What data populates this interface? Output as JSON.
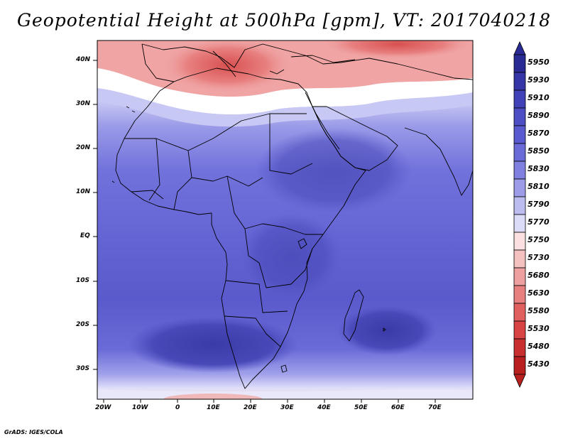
{
  "title": "Geopotential Height at 500hPa [gpm], VT: 2017040218",
  "footer": "GrADS: IGES/COLA",
  "lat_ticks": [
    {
      "label": "40N",
      "lat": 40
    },
    {
      "label": "30N",
      "lat": 30
    },
    {
      "label": "20N",
      "lat": 20
    },
    {
      "label": "10N",
      "lat": 10
    },
    {
      "label": "EQ",
      "lat": 0
    },
    {
      "label": "10S",
      "lat": -10
    },
    {
      "label": "20S",
      "lat": -20
    },
    {
      "label": "30S",
      "lat": -30
    }
  ],
  "lon_ticks": [
    {
      "label": "20W",
      "lon": -20
    },
    {
      "label": "10W",
      "lon": -10
    },
    {
      "label": "0",
      "lon": 0
    },
    {
      "label": "10E",
      "lon": 10
    },
    {
      "label": "20E",
      "lon": 20
    },
    {
      "label": "30E",
      "lon": 30
    },
    {
      "label": "40E",
      "lon": 40
    },
    {
      "label": "50E",
      "lon": 50
    },
    {
      "label": "60E",
      "lon": 60
    },
    {
      "label": "70E",
      "lon": 70
    }
  ],
  "colorbar": {
    "levels": [
      "5950",
      "5930",
      "5910",
      "5890",
      "5870",
      "5850",
      "5830",
      "5810",
      "5790",
      "5770",
      "5750",
      "5730",
      "5680",
      "5630",
      "5580",
      "5530",
      "5480",
      "5430"
    ],
    "colors": [
      "#2a2a94",
      "#3535a8",
      "#4141b8",
      "#4d4dc4",
      "#5a5ad0",
      "#6a6ad8",
      "#8080e0",
      "#9c9ce8",
      "#bcbcf0",
      "#dcdcf8",
      "#fae0e0",
      "#f4c0c0",
      "#eea0a0",
      "#e88080",
      "#e06060",
      "#d84444",
      "#c83030",
      "#b82020"
    ]
  },
  "chart_data": {
    "type": "heatmap",
    "variable": "Geopotential Height at 500hPa [gpm]",
    "valid_time": "2017040218",
    "lon_range": [
      -20,
      80
    ],
    "lat_range": [
      -37,
      45
    ],
    "field_summary": [
      {
        "region": "Mediterranean / Europe",
        "approx_gpm": 5600
      },
      {
        "region": "North Africa (Sahara)",
        "approx_gpm": 5830
      },
      {
        "region": "East Africa / Arabia",
        "approx_gpm": 5890
      },
      {
        "region": "Equatorial Africa",
        "approx_gpm": 5870
      },
      {
        "region": "Southern Africa",
        "approx_gpm": 5910
      },
      {
        "region": "Southern Indian Ocean",
        "approx_gpm": 5910
      },
      {
        "region": "Far south edge",
        "approx_gpm": 5750
      }
    ]
  }
}
